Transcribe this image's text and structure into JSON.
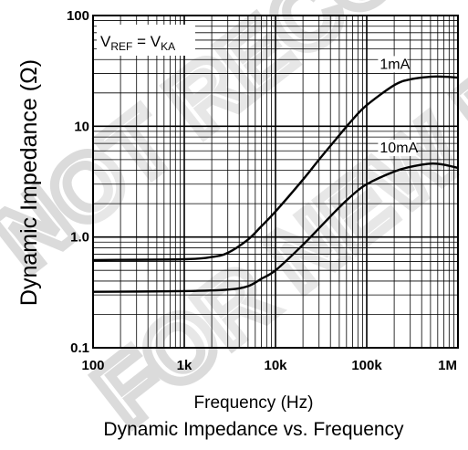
{
  "watermark": {
    "line1": "NOT RECOMMENDED",
    "line2": "FOR NEW DESIGN"
  },
  "chart_data": {
    "type": "line",
    "title": "Dynamic Impedance vs. Frequency",
    "xlabel": "Frequency (Hz)",
    "ylabel": "Dynamic Impedance (Ω)",
    "x_scale": "log",
    "y_scale": "log",
    "xlim": [
      100,
      1000000
    ],
    "ylim": [
      0.1,
      100
    ],
    "grid": true,
    "x_ticks": [
      {
        "value": 100,
        "label": "100"
      },
      {
        "value": 1000,
        "label": "1k"
      },
      {
        "value": 10000,
        "label": "10k"
      },
      {
        "value": 100000,
        "label": "100k"
      },
      {
        "value": 1000000,
        "label": "1M"
      }
    ],
    "y_ticks": [
      {
        "value": 100,
        "label": "100"
      },
      {
        "value": 10,
        "label": "10"
      },
      {
        "value": 1,
        "label": "1.0"
      },
      {
        "value": 0.1,
        "label": "0.1"
      }
    ],
    "condition": {
      "main1": "V",
      "sub1": "REF",
      "mid": " = V",
      "sub2": "KA"
    },
    "series": [
      {
        "name": "1mA",
        "label_at": {
          "x": 130000,
          "y": 33
        },
        "x": [
          100,
          1000,
          2000,
          3000,
          5000,
          7000,
          10000,
          20000,
          30000,
          50000,
          70000,
          100000,
          200000,
          300000,
          500000,
          700000,
          1000000
        ],
        "y": [
          0.62,
          0.63,
          0.66,
          0.72,
          0.95,
          1.25,
          1.7,
          3.3,
          5.0,
          8.3,
          11.5,
          15.5,
          23.5,
          26.5,
          28,
          28,
          27.5
        ]
      },
      {
        "name": "10mA",
        "label_at": {
          "x": 130000,
          "y": 5.8
        },
        "x": [
          100,
          1000,
          3000,
          5000,
          7000,
          10000,
          20000,
          30000,
          50000,
          70000,
          100000,
          200000,
          300000,
          500000,
          700000,
          1000000
        ],
        "y": [
          0.32,
          0.325,
          0.335,
          0.36,
          0.42,
          0.5,
          0.85,
          1.2,
          1.85,
          2.4,
          3.0,
          3.9,
          4.3,
          4.6,
          4.5,
          4.2
        ]
      }
    ]
  }
}
